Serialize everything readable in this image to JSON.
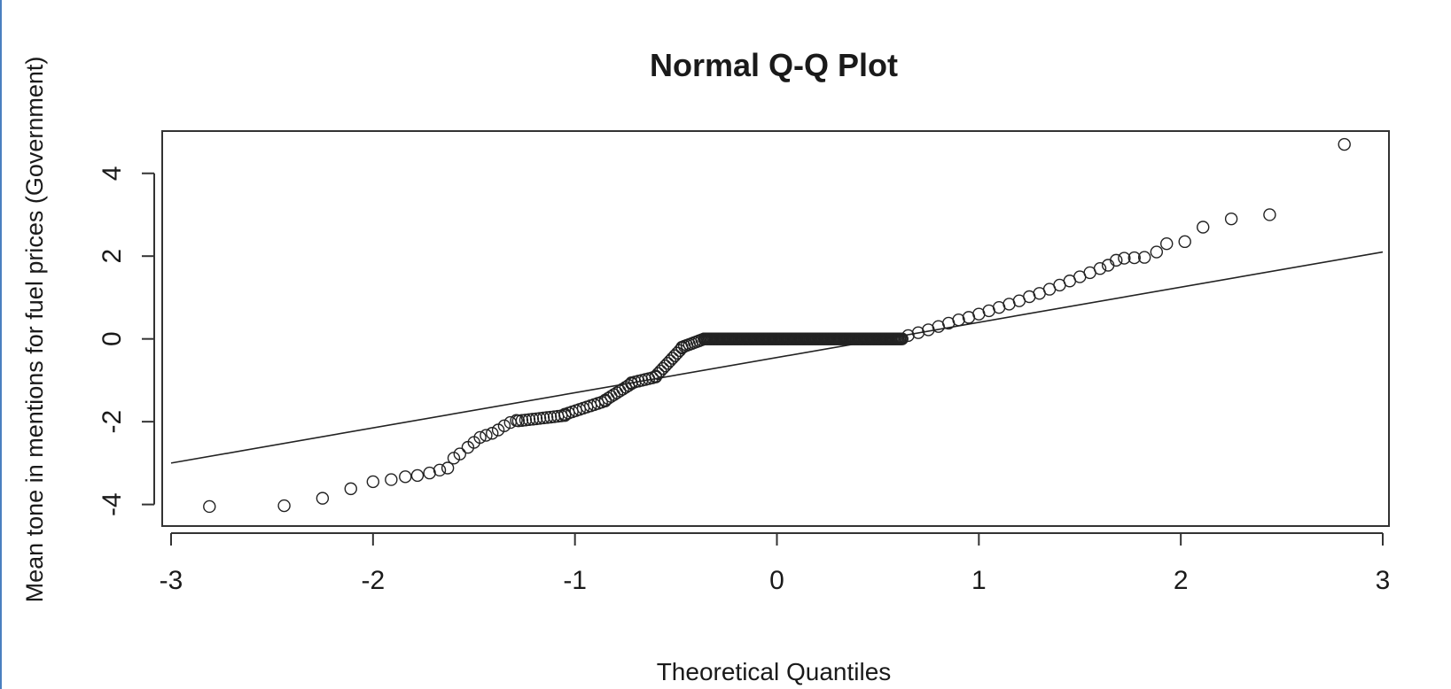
{
  "chart_data": {
    "type": "scatter",
    "title": "Normal Q-Q Plot",
    "xlabel": "Theoretical Quantiles",
    "ylabel": "Mean tone in mentions for fuel prices (Government)",
    "xlim": [
      -3,
      3
    ],
    "ylim": [
      -4.5,
      5.0
    ],
    "x_ticks": [
      -3,
      -2,
      -1,
      0,
      1,
      2,
      3
    ],
    "y_ticks": [
      -4,
      -2,
      0,
      2,
      4
    ],
    "grid": false,
    "legend": "none",
    "reference_line": {
      "x": [
        -3,
        3
      ],
      "y": [
        -3.0,
        2.1
      ]
    },
    "points_explicit": [
      [
        -2.81,
        -4.05
      ],
      [
        -2.44,
        -4.03
      ],
      [
        -2.25,
        -3.85
      ],
      [
        -2.11,
        -3.62
      ],
      [
        -2.0,
        -3.45
      ],
      [
        -1.91,
        -3.4
      ],
      [
        -1.84,
        -3.33
      ],
      [
        -1.78,
        -3.3
      ],
      [
        -1.72,
        -3.24
      ],
      [
        -1.67,
        -3.17
      ],
      [
        -1.63,
        -3.12
      ],
      [
        -1.6,
        -2.88
      ],
      [
        -1.57,
        -2.78
      ],
      [
        -1.53,
        -2.62
      ],
      [
        -1.5,
        -2.5
      ],
      [
        -1.47,
        -2.38
      ],
      [
        -1.44,
        -2.33
      ],
      [
        -1.41,
        -2.28
      ],
      [
        -1.38,
        -2.2
      ],
      [
        -1.35,
        -2.1
      ],
      [
        -1.32,
        -2.02
      ],
      [
        -1.29,
        -1.97
      ],
      [
        0.65,
        0.08
      ],
      [
        0.7,
        0.15
      ],
      [
        0.75,
        0.22
      ],
      [
        0.8,
        0.3
      ],
      [
        0.85,
        0.38
      ],
      [
        0.9,
        0.46
      ],
      [
        0.95,
        0.52
      ],
      [
        1.0,
        0.6
      ],
      [
        1.05,
        0.68
      ],
      [
        1.1,
        0.76
      ],
      [
        1.15,
        0.84
      ],
      [
        1.2,
        0.92
      ],
      [
        1.25,
        1.02
      ],
      [
        1.3,
        1.1
      ],
      [
        1.35,
        1.2
      ],
      [
        1.4,
        1.3
      ],
      [
        1.45,
        1.4
      ],
      [
        1.5,
        1.5
      ],
      [
        1.55,
        1.6
      ],
      [
        1.6,
        1.7
      ],
      [
        1.64,
        1.78
      ],
      [
        1.68,
        1.9
      ],
      [
        1.72,
        1.95
      ],
      [
        1.77,
        1.96
      ],
      [
        1.82,
        1.97
      ],
      [
        1.88,
        2.1
      ],
      [
        1.93,
        2.3
      ],
      [
        2.02,
        2.35
      ],
      [
        2.11,
        2.7
      ],
      [
        2.25,
        2.9
      ],
      [
        2.44,
        3.0
      ],
      [
        2.81,
        4.7
      ]
    ],
    "point_segments": [
      {
        "x": [
          -1.28,
          -1.05
        ],
        "y": [
          -1.98,
          -1.85
        ],
        "n": 14
      },
      {
        "x": [
          -1.05,
          -0.85
        ],
        "y": [
          -1.82,
          -1.5
        ],
        "n": 12
      },
      {
        "x": [
          -0.85,
          -0.72
        ],
        "y": [
          -1.48,
          -1.08
        ],
        "n": 10
      },
      {
        "x": [
          -0.72,
          -0.6
        ],
        "y": [
          -1.06,
          -0.92
        ],
        "n": 8
      },
      {
        "x": [
          -0.6,
          -0.47
        ],
        "y": [
          -0.9,
          -0.22
        ],
        "n": 12
      },
      {
        "x": [
          -0.47,
          -0.36
        ],
        "y": [
          -0.2,
          0.0
        ],
        "n": 10
      },
      {
        "x": [
          -0.36,
          0.62
        ],
        "y": [
          0.0,
          0.0
        ],
        "n": 160
      }
    ]
  }
}
